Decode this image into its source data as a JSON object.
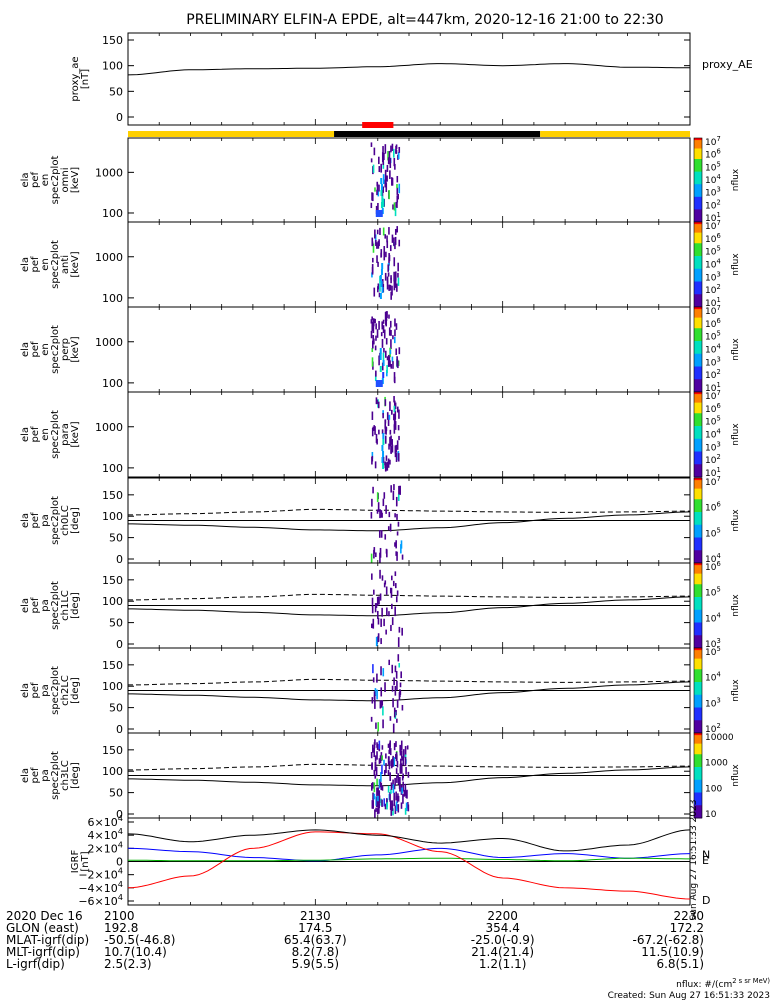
{
  "title": "PRELIMINARY ELFIN-A EPDE, alt=447km, 2020-12-16 21:00 to 22:30",
  "chart_data": [
    {
      "type": "line",
      "id": "proxy_ae",
      "ylabel": [
        "proxy_ae",
        "[nT]"
      ],
      "legend": "proxy_AE",
      "yticks": [
        "150",
        "100",
        "50",
        "0"
      ],
      "ylim": [
        0,
        150
      ],
      "x_minutes": [
        0,
        10,
        20,
        30,
        40,
        50,
        60,
        70,
        80,
        90
      ],
      "values": [
        82,
        92,
        94,
        95,
        98,
        104,
        100,
        104,
        97,
        96
      ]
    },
    {
      "type": "bar",
      "id": "status_bar",
      "segments": [
        {
          "start_min": 0,
          "end_min": 33,
          "color": "#ffd000"
        },
        {
          "start_min": 33,
          "end_min": 66,
          "color": "#000000"
        },
        {
          "start_min": 66,
          "end_min": 90,
          "color": "#ffd000"
        }
      ],
      "science_zone": {
        "start_min": 37.5,
        "end_min": 42.5,
        "color": "#ff0000"
      }
    },
    {
      "type": "heatmap",
      "id": "spec_omni",
      "ylabel": [
        "ela",
        "pef",
        "en",
        "spec2plot",
        "omni",
        "[keV]"
      ],
      "yticks": [
        "1000",
        "100"
      ],
      "colorbar_label": "nflux",
      "colorbar_ticks": [
        "10^7",
        "10^6",
        "10^5",
        "10^4",
        "10^3",
        "10^2",
        "10^1"
      ]
    },
    {
      "type": "heatmap",
      "id": "spec_anti",
      "ylabel": [
        "ela",
        "pef",
        "en",
        "spec2plot",
        "anti",
        "[keV]"
      ],
      "yticks": [
        "1000",
        "100"
      ],
      "colorbar_label": "nflux",
      "colorbar_ticks": [
        "10^7",
        "10^6",
        "10^5",
        "10^4",
        "10^3",
        "10^2",
        "10^1"
      ]
    },
    {
      "type": "heatmap",
      "id": "spec_perp",
      "ylabel": [
        "ela",
        "pef",
        "en",
        "spec2plot",
        "perp",
        "[keV]"
      ],
      "yticks": [
        "1000",
        "100"
      ],
      "colorbar_label": "nflux",
      "colorbar_ticks": [
        "10^7",
        "10^6",
        "10^5",
        "10^4",
        "10^3",
        "10^2",
        "10^1"
      ]
    },
    {
      "type": "heatmap",
      "id": "spec_para",
      "ylabel": [
        "ela",
        "pef",
        "en",
        "spec2plot",
        "para",
        "[keV]"
      ],
      "yticks": [
        "1000",
        "100"
      ],
      "colorbar_label": "nflux",
      "colorbar_ticks": [
        "10^7",
        "10^6",
        "10^5",
        "10^4",
        "10^3",
        "10^2",
        "10^1"
      ]
    },
    {
      "type": "heatmap",
      "id": "pa_ch0",
      "ylabel": [
        "ela",
        "pef",
        "pa",
        "spec2plot",
        "ch0LC",
        "[deg]"
      ],
      "yticks": [
        "150",
        "100",
        "50",
        "0"
      ],
      "colorbar_label": "nflux",
      "colorbar_ticks": [
        "10^7",
        "10^6",
        "10^5",
        "10^4"
      ],
      "ylim": [
        0,
        180
      ],
      "lc_solid": [
        82,
        79,
        74,
        68,
        66,
        73,
        85,
        95,
        103,
        110
      ],
      "lc_dashed": [
        103,
        106,
        110,
        116,
        114,
        112,
        110,
        109,
        110,
        112
      ]
    },
    {
      "type": "heatmap",
      "id": "pa_ch1",
      "ylabel": [
        "ela",
        "pef",
        "pa",
        "spec2plot",
        "ch1LC",
        "[deg]"
      ],
      "yticks": [
        "150",
        "100",
        "50",
        "0"
      ],
      "colorbar_label": "nflux",
      "colorbar_ticks": [
        "10^6",
        "10^5",
        "10^4",
        "10^3"
      ],
      "ylim": [
        0,
        180
      ],
      "lc_solid": [
        82,
        79,
        74,
        68,
        66,
        73,
        85,
        95,
        103,
        110
      ],
      "lc_dashed": [
        103,
        106,
        110,
        116,
        114,
        112,
        110,
        109,
        110,
        112
      ]
    },
    {
      "type": "heatmap",
      "id": "pa_ch2",
      "ylabel": [
        "ela",
        "pef",
        "pa",
        "spec2plot",
        "ch2LC",
        "[deg]"
      ],
      "yticks": [
        "150",
        "100",
        "50",
        "0"
      ],
      "colorbar_label": "nflux",
      "colorbar_ticks": [
        "10^5",
        "10^4",
        "10^3",
        "10^2"
      ],
      "ylim": [
        0,
        180
      ],
      "lc_solid": [
        82,
        79,
        74,
        68,
        66,
        73,
        85,
        95,
        103,
        110
      ],
      "lc_dashed": [
        103,
        106,
        110,
        116,
        114,
        112,
        110,
        109,
        110,
        112
      ]
    },
    {
      "type": "heatmap",
      "id": "pa_ch3",
      "ylabel": [
        "ela",
        "pef",
        "pa",
        "spec2plot",
        "ch3LC",
        "[deg]"
      ],
      "yticks": [
        "150",
        "100",
        "50",
        "0"
      ],
      "colorbar_label": "nflux",
      "colorbar_ticks": [
        "10000",
        "1000",
        "100",
        "10"
      ],
      "ylim": [
        0,
        180
      ],
      "lc_solid": [
        82,
        79,
        74,
        68,
        66,
        73,
        85,
        95,
        103,
        110
      ],
      "lc_dashed": [
        103,
        106,
        110,
        116,
        114,
        112,
        110,
        109,
        110,
        112
      ]
    },
    {
      "type": "line",
      "id": "igrf",
      "ylabel": [
        "IGRF",
        "[nT]"
      ],
      "ylim": [
        -60000,
        60000
      ],
      "yticks": [
        "6×10^4",
        "4×10^4",
        "2×10^4",
        "0",
        "−2×10^4",
        "−4×10^4",
        "−6×10^4"
      ],
      "series": [
        {
          "name": "N",
          "color": "#0000ff",
          "values": [
            20000,
            15000,
            6000,
            1000,
            10000,
            20000,
            6000,
            12000,
            5000,
            12000
          ]
        },
        {
          "name": "E",
          "color": "#00b000",
          "values": [
            2000,
            1000,
            1000,
            2000,
            4000,
            5000,
            3000,
            1000,
            5000,
            4000
          ]
        },
        {
          "name": "D",
          "color": "#ff0000",
          "values": [
            -40000,
            -22000,
            20000,
            45000,
            42000,
            15000,
            -25000,
            -40000,
            -45000,
            -57000
          ]
        },
        {
          "color": "#000000",
          "values": [
            42000,
            30000,
            40000,
            48000,
            40000,
            28000,
            35000,
            16000,
            25000,
            48000
          ]
        }
      ]
    }
  ],
  "rotated_stamp": "Sun Aug 27 16:51:33 2023",
  "footer": {
    "rows": [
      {
        "label": "2020 Dec 16",
        "values": [
          "2100",
          "2130",
          "2200",
          "2230"
        ]
      },
      {
        "label": "GLON (east)",
        "values": [
          "192.8",
          "174.5",
          "354.4",
          "172.2"
        ]
      },
      {
        "label": "MLAT-igrf(dip)",
        "values": [
          "-50.5(-46.8)",
          "65.4(63.7)",
          "-25.0(-0.9)",
          "-67.2(-62.8)"
        ]
      },
      {
        "label": "MLT-igrf(dip)",
        "values": [
          "10.7(10.4)",
          "8.2(7.8)",
          "21.4(21.4)",
          "11.5(10.9)"
        ]
      },
      {
        "label": "L-igrf(dip)",
        "values": [
          "2.5(2.3)",
          "5.9(5.5)",
          "1.2(1.1)",
          "6.8(5.1)"
        ]
      }
    ],
    "units_note": "nflux: #/(cm^2 s sr MeV)",
    "created": "Created: Sun Aug 27 16:51:33 2023"
  }
}
